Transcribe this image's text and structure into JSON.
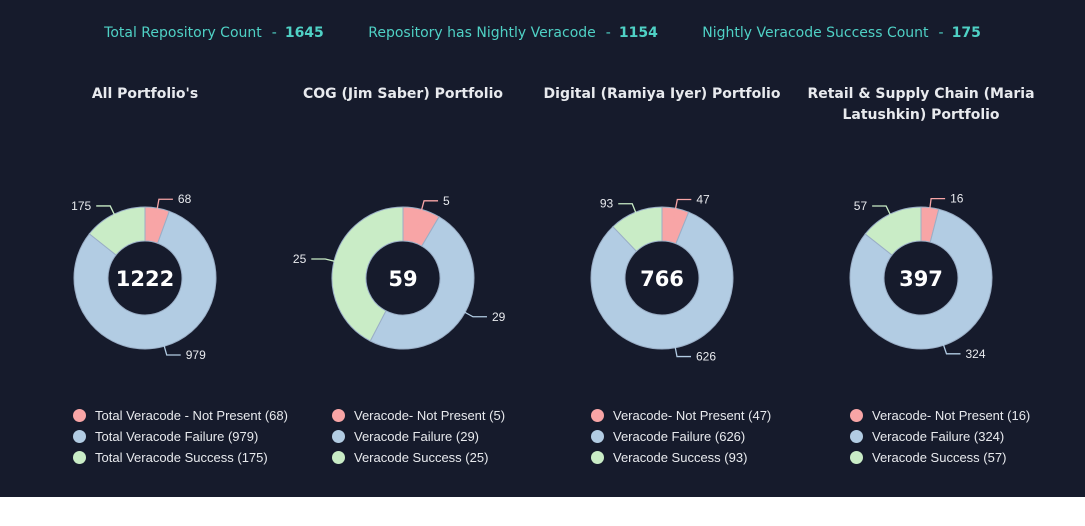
{
  "stats": [
    {
      "label": "Total Repository Count",
      "value": "1645"
    },
    {
      "label": "Repository has Nightly Veracode",
      "value": "1154"
    },
    {
      "label": "Nightly Veracode Success Count",
      "value": "175"
    }
  ],
  "stat_separator": "-",
  "colors": {
    "not_present": "#f8a5a6",
    "failure": "#b2cce3",
    "success": "#c9ecc6",
    "background": "#161b2c",
    "accent": "#4fd1c5"
  },
  "chart_data": [
    {
      "type": "pie",
      "title": "All Portfolio's",
      "center_label": "1222",
      "categories": [
        "Total Veracode - Not Present",
        "Total Veracode Failure",
        "Total Veracode Success"
      ],
      "values": [
        68,
        979,
        175
      ],
      "legend": [
        "Total Veracode - Not Present (68)",
        "Total Veracode Failure (979)",
        "Total Veracode Success (175)"
      ]
    },
    {
      "type": "pie",
      "title": "COG (Jim Saber) Portfolio",
      "center_label": "59",
      "categories": [
        "Veracode- Not Present",
        "Veracode Failure",
        "Veracode Success"
      ],
      "values": [
        5,
        29,
        25
      ],
      "legend": [
        "Veracode- Not Present (5)",
        "Veracode Failure (29)",
        "Veracode Success (25)"
      ]
    },
    {
      "type": "pie",
      "title": "Digital (Ramiya Iyer) Portfolio",
      "center_label": "766",
      "categories": [
        "Veracode- Not Present",
        "Veracode Failure",
        "Veracode Success"
      ],
      "values": [
        47,
        626,
        93
      ],
      "legend": [
        "Veracode- Not Present (47)",
        "Veracode Failure (626)",
        "Veracode Success (93)"
      ]
    },
    {
      "type": "pie",
      "title": "Retail & Supply Chain (Maria Latushkin) Portfolio",
      "center_label": "397",
      "categories": [
        "Veracode- Not Present",
        "Veracode Failure",
        "Veracode Success"
      ],
      "values": [
        16,
        324,
        57
      ],
      "legend": [
        "Veracode- Not Present (16)",
        "Veracode Failure (324)",
        "Veracode Success (57)"
      ]
    }
  ]
}
